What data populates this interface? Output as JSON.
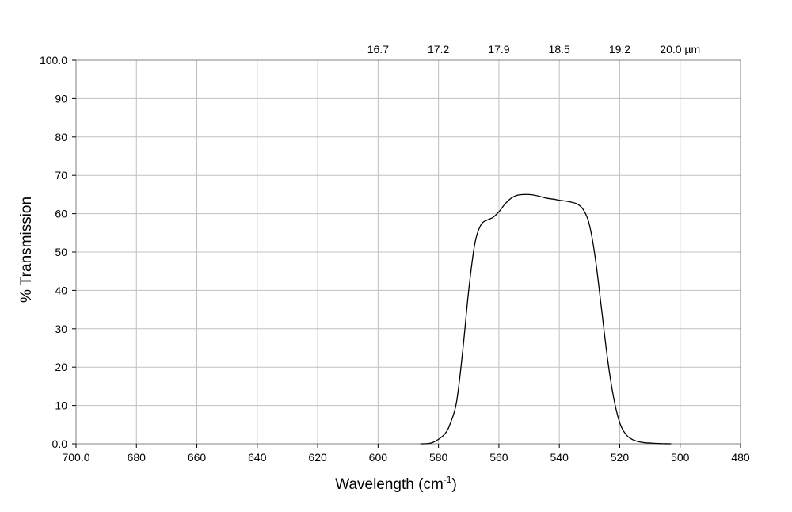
{
  "chart_data": {
    "type": "line",
    "xlabel": "Wavelength (cm",
    "xlabel_sup": "-1",
    "xlabel_close": ")",
    "ylabel": "% Transmission",
    "xlim": [
      700,
      480
    ],
    "ylim": [
      0,
      100
    ],
    "x_ticks": [
      700,
      680,
      660,
      640,
      620,
      600,
      580,
      560,
      540,
      520,
      500,
      480
    ],
    "x_tick_labels": [
      "700.0",
      "680",
      "660",
      "640",
      "620",
      "600",
      "580",
      "560",
      "540",
      "520",
      "500",
      "480"
    ],
    "y_ticks": [
      0,
      10,
      20,
      30,
      40,
      50,
      60,
      70,
      80,
      90,
      100
    ],
    "y_tick_labels": [
      "0.0",
      "10",
      "20",
      "30",
      "40",
      "50",
      "60",
      "70",
      "80",
      "90",
      "100.0"
    ],
    "top_axis": {
      "label_positions": [
        600,
        580,
        560,
        540,
        520,
        500
      ],
      "labels": [
        "16.7",
        "17.2",
        "17.9",
        "18.5",
        "19.2",
        "20.0 µm"
      ]
    },
    "grid": true,
    "series": [
      {
        "x": [
          586,
          582,
          578,
          576,
          574,
          572,
          570,
          568,
          566,
          564,
          562,
          560,
          558,
          556,
          554,
          552,
          550,
          548,
          546,
          544,
          542,
          540,
          538,
          536,
          534,
          532,
          530,
          528,
          526,
          524,
          522,
          520,
          518,
          516,
          514,
          512,
          510,
          508,
          506,
          503
        ],
        "y": [
          0,
          0.3,
          2.5,
          5.5,
          11,
          24,
          40,
          52,
          57,
          58.3,
          59,
          60.5,
          62.5,
          64,
          64.8,
          65,
          65,
          64.8,
          64.4,
          64,
          63.8,
          63.5,
          63.3,
          63,
          62.5,
          61,
          57,
          48,
          35,
          22,
          12,
          5.5,
          2.5,
          1.2,
          0.6,
          0.3,
          0.2,
          0.1,
          0.05,
          0
        ]
      }
    ]
  }
}
